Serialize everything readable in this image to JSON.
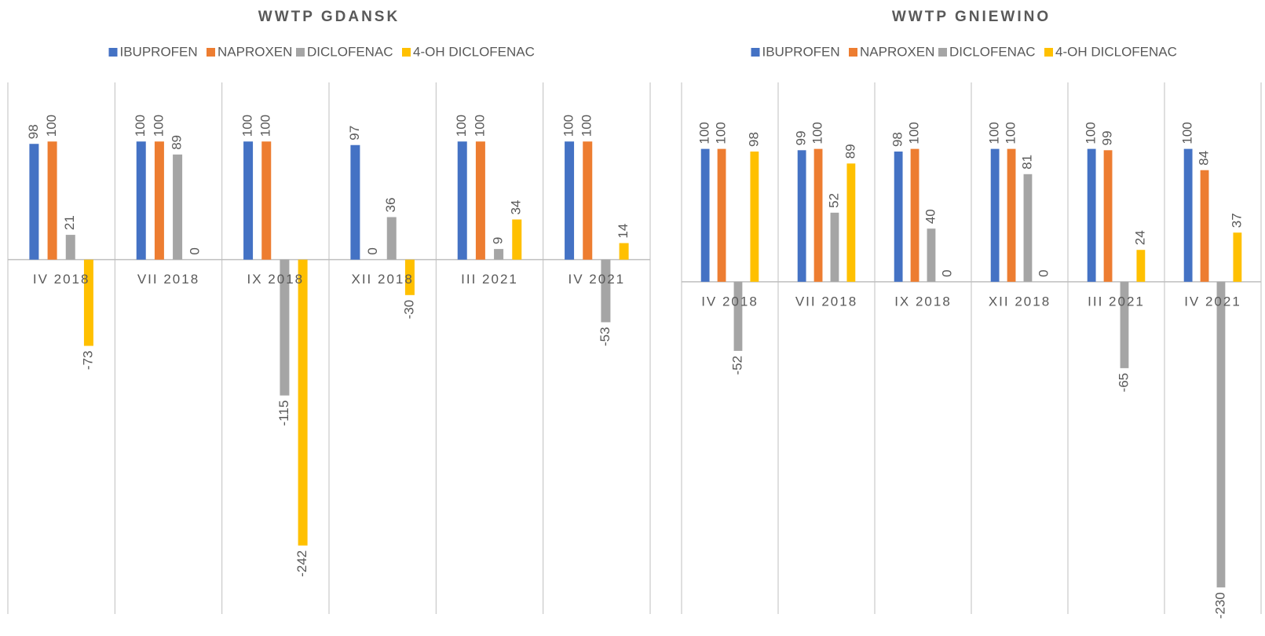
{
  "chart_data": [
    {
      "type": "bar",
      "title": "WWTP GDANSK",
      "categories": [
        "IV 2018",
        "VII 2018",
        "IX 2018",
        "XII 2018",
        "III 2021",
        "IV 2021"
      ],
      "series": [
        {
          "name": "IBUPROFEN",
          "color": "#4472c4",
          "values": [
            98,
            100,
            100,
            97,
            100,
            100
          ]
        },
        {
          "name": "NAPROXEN",
          "color": "#ed7d31",
          "values": [
            100,
            100,
            100,
            0,
            100,
            100
          ]
        },
        {
          "name": "DICLOFENAC",
          "color": "#a5a5a5",
          "values": [
            21,
            89,
            -115,
            36,
            9,
            -53
          ]
        },
        {
          "name": "4-OH DICLOFENAC",
          "color": "#ffc000",
          "values": [
            -73,
            0,
            -242,
            -30,
            34,
            14
          ]
        }
      ],
      "ylim": [
        -300,
        150
      ]
    },
    {
      "type": "bar",
      "title": "WWTP GNIEWINO",
      "categories": [
        "IV 2018",
        "VII 2018",
        "IX 2018",
        "XII 2018",
        "III 2021",
        "IV 2021"
      ],
      "series": [
        {
          "name": "IBUPROFEN",
          "color": "#4472c4",
          "values": [
            100,
            99,
            98,
            100,
            100,
            100
          ]
        },
        {
          "name": "NAPROXEN",
          "color": "#ed7d31",
          "values": [
            100,
            100,
            100,
            100,
            99,
            84
          ]
        },
        {
          "name": "DICLOFENAC",
          "color": "#a5a5a5",
          "values": [
            -52,
            52,
            40,
            81,
            -65,
            -230
          ]
        },
        {
          "name": "4-OH DICLOFENAC",
          "color": "#ffc000",
          "values": [
            98,
            89,
            0,
            0,
            24,
            37
          ]
        }
      ],
      "ylim": [
        -250,
        150
      ]
    }
  ]
}
